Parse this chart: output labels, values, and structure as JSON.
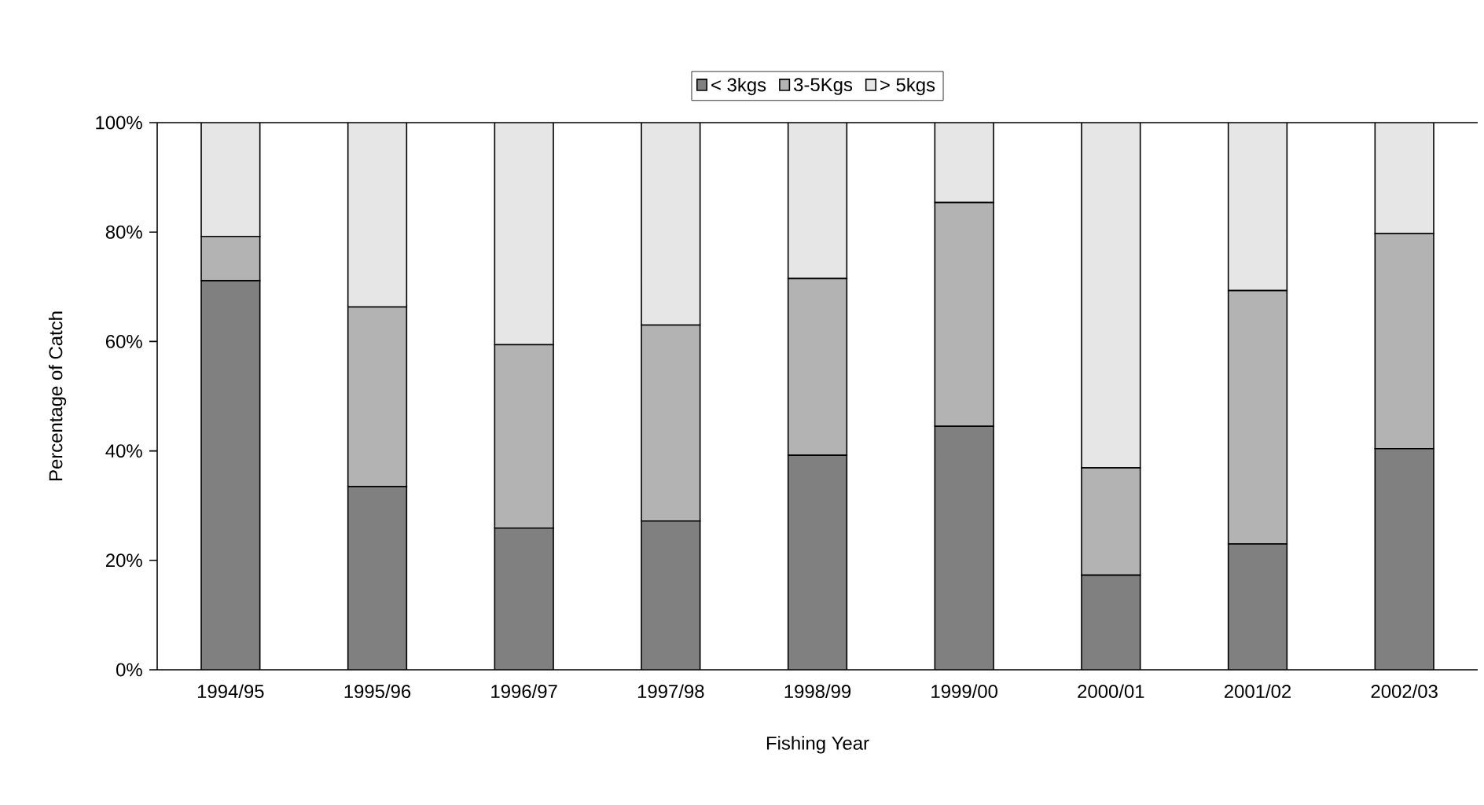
{
  "chart_data": {
    "type": "bar",
    "stacked": true,
    "xlabel": "Fishing Year",
    "ylabel": "Percentage of Catch",
    "categories": [
      "1994/95",
      "1995/96",
      "1996/97",
      "1997/98",
      "1998/99",
      "1999/00",
      "2000/01",
      "2001/02",
      "2002/03"
    ],
    "series": [
      {
        "name": "< 3kgs",
        "color": "#808080",
        "values": [
          71.1,
          33.5,
          25.9,
          27.2,
          39.2,
          44.5,
          17.3,
          23.0,
          40.4
        ]
      },
      {
        "name": "3-5Kgs",
        "color": "#b3b3b3",
        "values": [
          8.1,
          32.8,
          33.5,
          35.8,
          32.3,
          40.9,
          19.6,
          46.3,
          39.3
        ]
      },
      {
        "name": "> 5kgs",
        "color": "#e6e6e6",
        "values": [
          20.8,
          33.7,
          40.6,
          37.0,
          28.5,
          14.6,
          63.1,
          30.7,
          20.3
        ]
      }
    ],
    "ylim": [
      0,
      100
    ],
    "yticks": [
      {
        "value": 0,
        "label": "0%"
      },
      {
        "value": 20,
        "label": "20%"
      },
      {
        "value": 40,
        "label": "40%"
      },
      {
        "value": 60,
        "label": "60%"
      },
      {
        "value": 80,
        "label": "80%"
      },
      {
        "value": 100,
        "label": "100%"
      }
    ],
    "legend": "top"
  }
}
